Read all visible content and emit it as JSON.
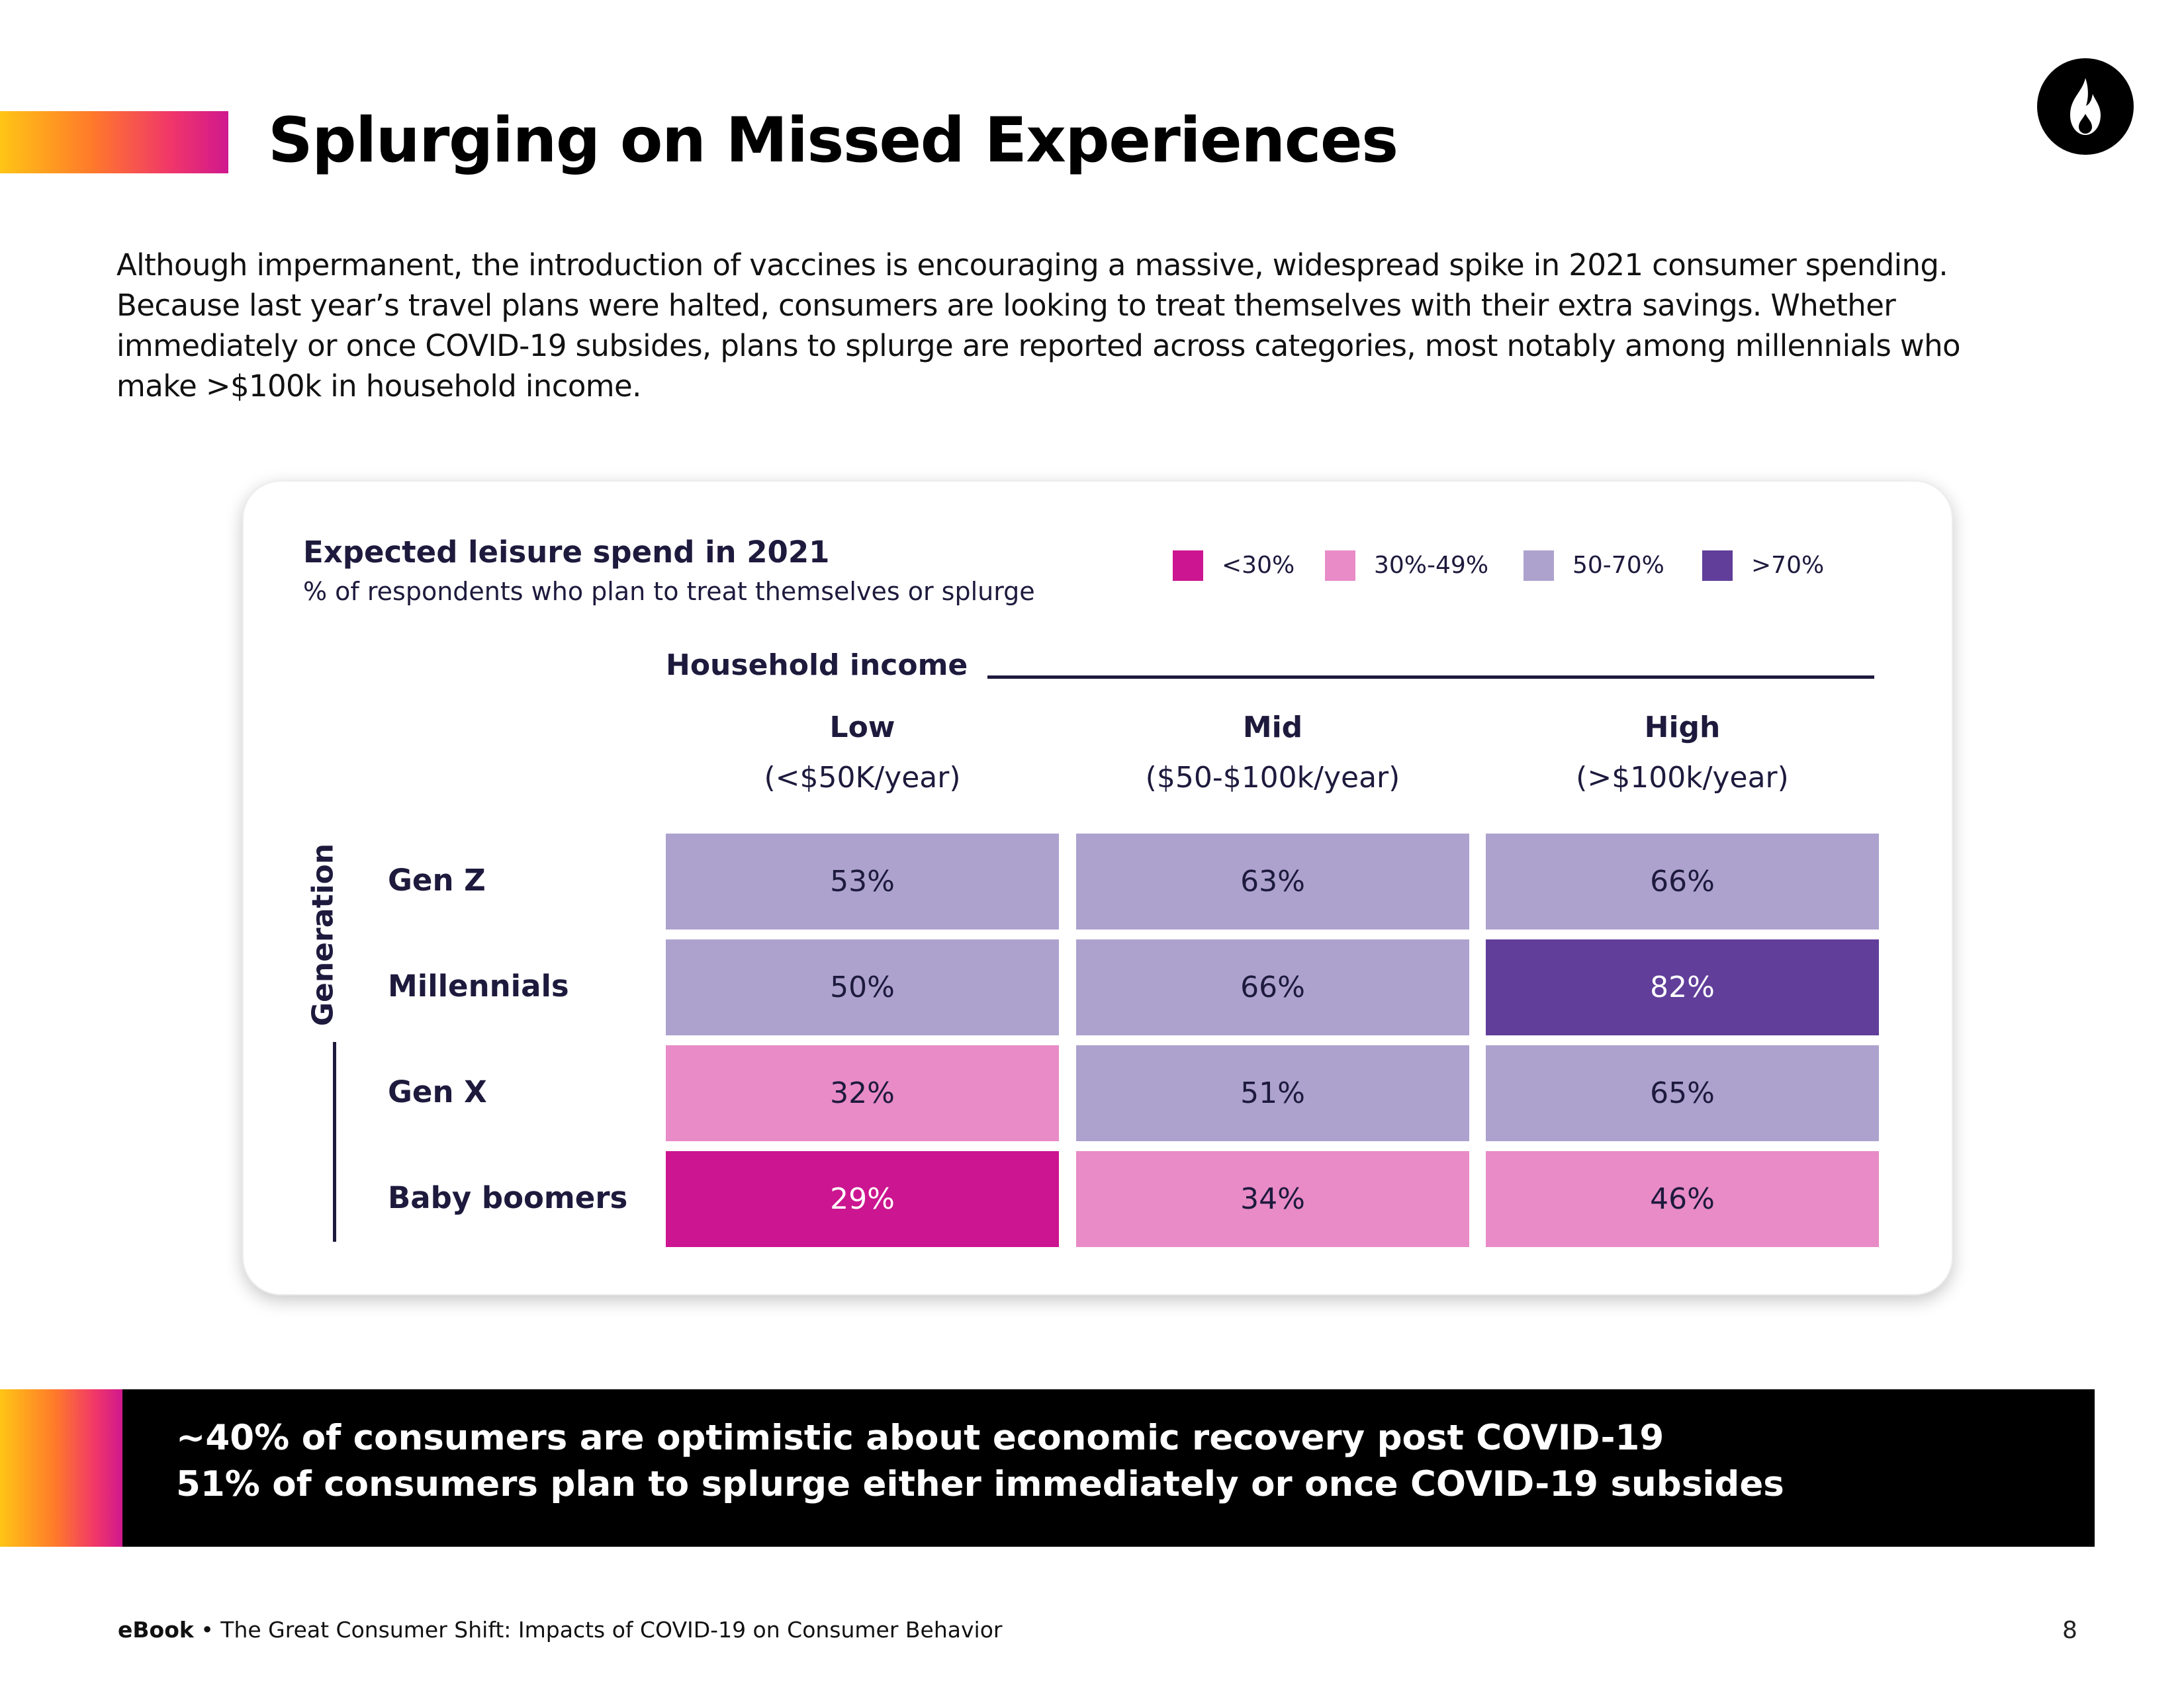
{
  "header": {
    "title": "Splurging on Missed Experiences",
    "logo_icon": "flame-icon"
  },
  "intro_lines": [
    "Although impermanent, the introduction of vaccines is encouraging a massive, widespread spike in 2021 consumer spending.",
    "Because last year’s travel plans were halted, consumers are looking to treat themselves with their extra savings. Whether",
    "immediately or once COVID-19 subsides, plans to splurge are reported across categories, most notably among millennials who",
    "make >$100k in household income."
  ],
  "chart_data": {
    "type": "heatmap",
    "title": "Expected leisure spend in 2021",
    "subtitle": "% of respondents who plan to treat themselves or splurge",
    "x_header": "Household income",
    "y_header": "Generation",
    "columns": [
      {
        "name": "Low",
        "range": "(<$50K/year)"
      },
      {
        "name": "Mid",
        "range": "($50-$100k/year)"
      },
      {
        "name": "High",
        "range": "(>$100k/year)"
      }
    ],
    "rows": [
      "Gen Z",
      "Millennials",
      "Gen X",
      "Baby boomers"
    ],
    "values": [
      [
        53,
        63,
        66
      ],
      [
        50,
        66,
        82
      ],
      [
        32,
        51,
        65
      ],
      [
        29,
        34,
        46
      ]
    ],
    "value_suffix": "%",
    "legend": [
      {
        "label": "<30%",
        "color": "#cc1590",
        "min": 0,
        "max": 29.99
      },
      {
        "label": "30%-49%",
        "color": "#e88bc7",
        "min": 30,
        "max": 49.99
      },
      {
        "label": "50-70%",
        "color": "#ada2ce",
        "min": 50,
        "max": 70
      },
      {
        "label": ">70%",
        "color": "#603e9a",
        "min": 70.01,
        "max": 100
      }
    ],
    "legend_placement": "top-right"
  },
  "banner": {
    "lines": [
      "~40% of consumers are optimistic about economic recovery post COVID-19",
      "51% of consumers plan to splurge either immediately or once COVID-19 subsides"
    ]
  },
  "footer": {
    "label": "eBook",
    "separator": "•",
    "text": "The Great Consumer Shift: Impacts of COVID-19 on Consumer Behavior",
    "page": "8"
  }
}
